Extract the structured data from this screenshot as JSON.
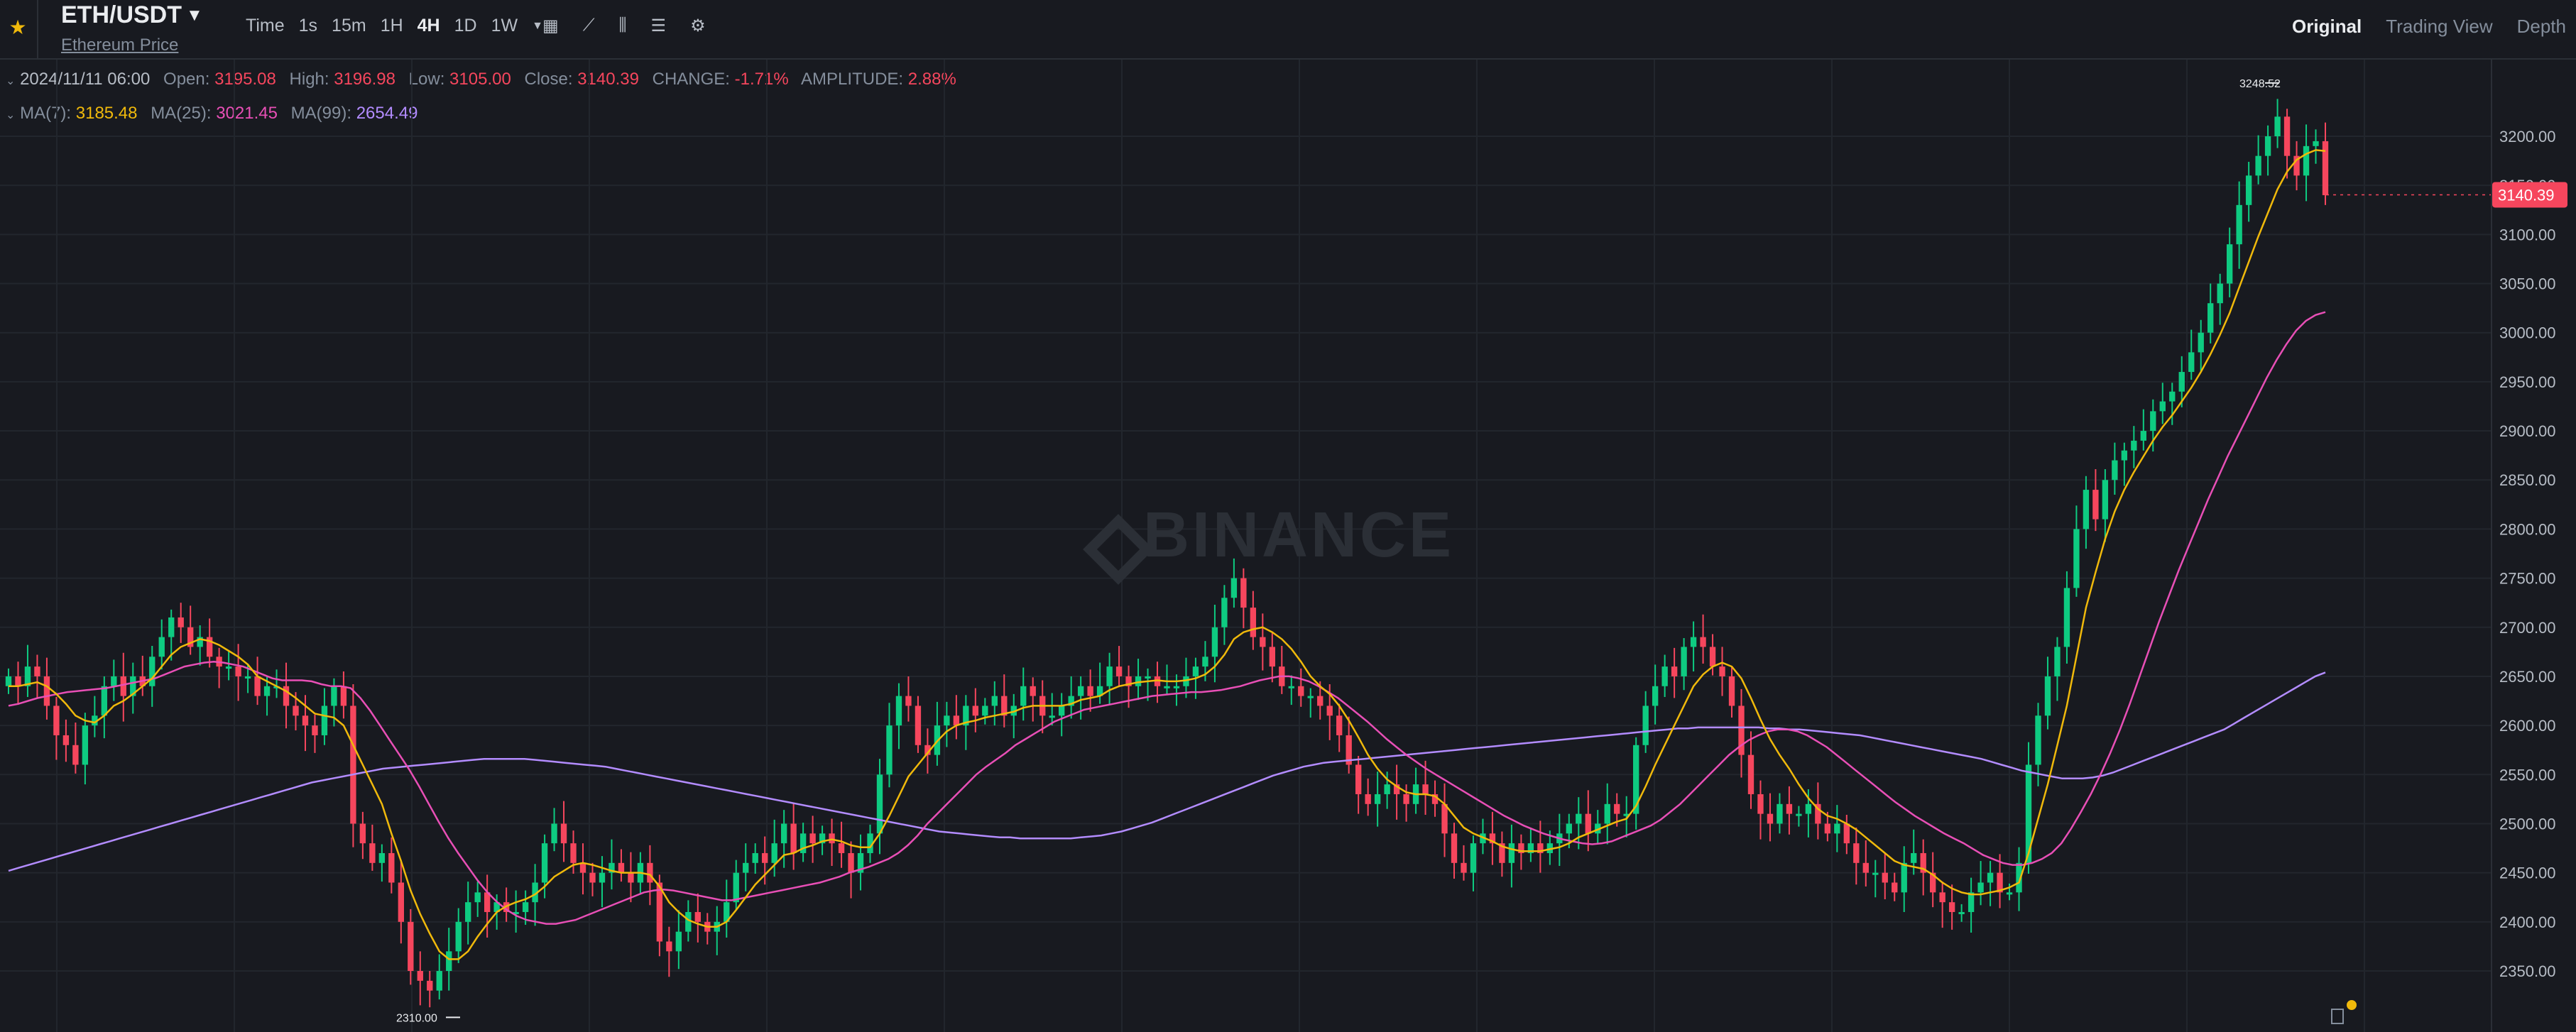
{
  "header": {
    "pair": "ETH/USDT",
    "subtitle": "Ethereum Price",
    "intervals": [
      "Time",
      "1s",
      "15m",
      "1H",
      "4H",
      "1D",
      "1W"
    ],
    "active_interval": "4H",
    "views": [
      "Original",
      "Trading View",
      "Depth"
    ],
    "active_view": "Original"
  },
  "ohlc": {
    "date": "2024/11/11 06:00",
    "open_label": "Open:",
    "open": "3195.08",
    "high_label": "High:",
    "high": "3196.98",
    "low_label": "Low:",
    "low": "3105.00",
    "close_label": "Close:",
    "close": "3140.39",
    "change_label": "CHANGE:",
    "change": "-1.71%",
    "amplitude_label": "AMPLITUDE:",
    "amplitude": "2.88%"
  },
  "ma": {
    "ma7_label": "MA(7):",
    "ma7": "3185.48",
    "ma25_label": "MA(25):",
    "ma25": "3021.45",
    "ma99_label": "MA(99):",
    "ma99": "2654.49"
  },
  "chart_data": {
    "type": "candlestick",
    "y_tick_labels": [
      "3200.00",
      "3150.00",
      "3100.00",
      "3050.00",
      "3000.00",
      "2950.00",
      "2900.00",
      "2850.00",
      "2800.00",
      "2750.00",
      "2700.00",
      "2650.00",
      "2600.00",
      "2550.00",
      "2500.00",
      "2450.00",
      "2400.00",
      "2350.00"
    ],
    "ylim": [
      2300,
      3305
    ],
    "high_marker": "3248.52",
    "low_marker": "2310.00",
    "last_price": "3140.39",
    "watermark": "BINANCE",
    "colors": {
      "up": "#0ecb81",
      "down": "#f6465d",
      "ma7": "#f0b90b",
      "ma25": "#e84fb6",
      "ma99": "#b38cff",
      "grid": "#22262d"
    },
    "closes": [
      2650,
      2640,
      2660,
      2650,
      2620,
      2590,
      2580,
      2560,
      2600,
      2610,
      2640,
      2650,
      2630,
      2650,
      2640,
      2670,
      2690,
      2710,
      2700,
      2680,
      2690,
      2670,
      2660,
      2660,
      2650,
      2650,
      2630,
      2640,
      2640,
      2620,
      2610,
      2600,
      2590,
      2620,
      2640,
      2620,
      2500,
      2480,
      2460,
      2470,
      2440,
      2400,
      2350,
      2340,
      2330,
      2350,
      2370,
      2400,
      2420,
      2430,
      2410,
      2420,
      2410,
      2410,
      2420,
      2440,
      2480,
      2500,
      2480,
      2460,
      2450,
      2440,
      2450,
      2460,
      2450,
      2440,
      2460,
      2440,
      2380,
      2370,
      2390,
      2410,
      2400,
      2390,
      2400,
      2420,
      2450,
      2460,
      2470,
      2460,
      2480,
      2500,
      2470,
      2490,
      2480,
      2490,
      2480,
      2470,
      2450,
      2470,
      2490,
      2550,
      2600,
      2630,
      2620,
      2580,
      2570,
      2600,
      2610,
      2600,
      2620,
      2610,
      2620,
      2630,
      2610,
      2620,
      2640,
      2630,
      2610,
      2610,
      2620,
      2630,
      2640,
      2630,
      2640,
      2660,
      2650,
      2640,
      2650,
      2650,
      2640,
      2640,
      2640,
      2650,
      2660,
      2670,
      2700,
      2730,
      2750,
      2720,
      2690,
      2680,
      2660,
      2640,
      2640,
      2630,
      2630,
      2620,
      2610,
      2590,
      2560,
      2530,
      2520,
      2530,
      2540,
      2530,
      2520,
      2540,
      2530,
      2520,
      2490,
      2460,
      2450,
      2480,
      2490,
      2480,
      2460,
      2480,
      2470,
      2480,
      2470,
      2480,
      2490,
      2500,
      2510,
      2490,
      2500,
      2520,
      2510,
      2510,
      2580,
      2620,
      2640,
      2660,
      2650,
      2680,
      2690,
      2680,
      2660,
      2650,
      2620,
      2570,
      2530,
      2510,
      2500,
      2520,
      2510,
      2510,
      2520,
      2500,
      2490,
      2500,
      2480,
      2460,
      2450,
      2450,
      2440,
      2430,
      2460,
      2470,
      2450,
      2430,
      2420,
      2410,
      2410,
      2430,
      2440,
      2450,
      2430,
      2430,
      2460,
      2560,
      2610,
      2650,
      2680,
      2740,
      2800,
      2840,
      2810,
      2850,
      2870,
      2880,
      2890,
      2900,
      2920,
      2930,
      2940,
      2960,
      2980,
      3000,
      3030,
      3050,
      3090,
      3130,
      3160,
      3180,
      3200,
      3220,
      3180,
      3160,
      3190,
      3195,
      3140
    ],
    "ma7": [
      2640,
      2640,
      2642,
      2644,
      2640,
      2632,
      2622,
      2610,
      2605,
      2603,
      2610,
      2620,
      2625,
      2632,
      2640,
      2648,
      2660,
      2672,
      2680,
      2684,
      2688,
      2686,
      2682,
      2676,
      2670,
      2662,
      2650,
      2645,
      2640,
      2635,
      2628,
      2620,
      2612,
      2610,
      2608,
      2600,
      2580,
      2560,
      2540,
      2520,
      2490,
      2462,
      2432,
      2408,
      2388,
      2370,
      2362,
      2362,
      2370,
      2385,
      2398,
      2410,
      2416,
      2420,
      2423,
      2428,
      2436,
      2446,
      2452,
      2458,
      2460,
      2458,
      2455,
      2452,
      2450,
      2450,
      2450,
      2448,
      2436,
      2420,
      2410,
      2402,
      2398,
      2395,
      2395,
      2400,
      2412,
      2425,
      2438,
      2448,
      2458,
      2468,
      2470,
      2475,
      2478,
      2482,
      2484,
      2482,
      2478,
      2476,
      2476,
      2490,
      2508,
      2528,
      2548,
      2560,
      2572,
      2584,
      2594,
      2600,
      2603,
      2605,
      2608,
      2610,
      2612,
      2614,
      2618,
      2620,
      2620,
      2620,
      2620,
      2622,
      2626,
      2628,
      2630,
      2636,
      2640,
      2642,
      2644,
      2645,
      2646,
      2645,
      2645,
      2646,
      2648,
      2652,
      2660,
      2672,
      2688,
      2695,
      2698,
      2700,
      2695,
      2688,
      2678,
      2665,
      2650,
      2640,
      2632,
      2620,
      2605,
      2588,
      2570,
      2556,
      2545,
      2538,
      2532,
      2530,
      2530,
      2528,
      2520,
      2508,
      2496,
      2490,
      2486,
      2482,
      2477,
      2474,
      2472,
      2472,
      2472,
      2474,
      2476,
      2480,
      2486,
      2490,
      2494,
      2498,
      2502,
      2505,
      2518,
      2538,
      2560,
      2580,
      2600,
      2620,
      2640,
      2652,
      2660,
      2664,
      2660,
      2648,
      2628,
      2606,
      2586,
      2570,
      2556,
      2540,
      2526,
      2515,
      2508,
      2505,
      2500,
      2494,
      2486,
      2478,
      2470,
      2462,
      2458,
      2456,
      2454,
      2448,
      2440,
      2434,
      2430,
      2428,
      2428,
      2430,
      2432,
      2435,
      2440,
      2470,
      2505,
      2540,
      2580,
      2620,
      2670,
      2720,
      2756,
      2790,
      2818,
      2840,
      2858,
      2874,
      2890,
      2904,
      2916,
      2930,
      2944,
      2960,
      2978,
      2998,
      3020,
      3046,
      3072,
      3098,
      3122,
      3146,
      3164,
      3176,
      3182,
      3186,
      3185
    ],
    "ma25": [
      2620,
      2622,
      2625,
      2628,
      2630,
      2632,
      2634,
      2635,
      2636,
      2637,
      2638,
      2640,
      2642,
      2644,
      2646,
      2648,
      2652,
      2656,
      2660,
      2662,
      2664,
      2665,
      2664,
      2662,
      2660,
      2656,
      2652,
      2648,
      2646,
      2646,
      2646,
      2645,
      2642,
      2640,
      2640,
      2638,
      2628,
      2615,
      2600,
      2585,
      2570,
      2555,
      2538,
      2520,
      2502,
      2485,
      2470,
      2456,
      2442,
      2430,
      2420,
      2412,
      2406,
      2402,
      2400,
      2398,
      2398,
      2400,
      2402,
      2406,
      2410,
      2414,
      2418,
      2422,
      2426,
      2430,
      2432,
      2433,
      2432,
      2430,
      2428,
      2426,
      2424,
      2422,
      2422,
      2424,
      2426,
      2428,
      2430,
      2432,
      2434,
      2436,
      2438,
      2440,
      2443,
      2446,
      2450,
      2453,
      2456,
      2460,
      2464,
      2470,
      2478,
      2488,
      2500,
      2510,
      2520,
      2530,
      2540,
      2550,
      2558,
      2565,
      2572,
      2580,
      2586,
      2592,
      2598,
      2604,
      2608,
      2612,
      2616,
      2618,
      2620,
      2622,
      2624,
      2626,
      2628,
      2630,
      2631,
      2632,
      2633,
      2634,
      2634,
      2635,
      2636,
      2638,
      2640,
      2643,
      2646,
      2648,
      2650,
      2650,
      2648,
      2645,
      2640,
      2634,
      2628,
      2620,
      2612,
      2604,
      2595,
      2586,
      2578,
      2570,
      2563,
      2556,
      2550,
      2544,
      2538,
      2532,
      2526,
      2520,
      2514,
      2508,
      2503,
      2498,
      2494,
      2490,
      2487,
      2484,
      2482,
      2480,
      2479,
      2480,
      2482,
      2486,
      2490,
      2494,
      2498,
      2504,
      2512,
      2520,
      2530,
      2540,
      2550,
      2560,
      2570,
      2578,
      2585,
      2590,
      2594,
      2596,
      2596,
      2594,
      2590,
      2584,
      2578,
      2570,
      2562,
      2554,
      2546,
      2538,
      2530,
      2522,
      2515,
      2508,
      2502,
      2496,
      2490,
      2485,
      2480,
      2474,
      2468,
      2464,
      2460,
      2458,
      2458,
      2460,
      2464,
      2470,
      2480,
      2495,
      2512,
      2530,
      2550,
      2572,
      2596,
      2622,
      2650,
      2678,
      2706,
      2732,
      2758,
      2782,
      2806,
      2830,
      2852,
      2874,
      2894,
      2914,
      2934,
      2954,
      2972,
      2988,
      3002,
      3012,
      3018,
      3021
    ],
    "ma99": [
      2452,
      2455,
      2458,
      2461,
      2464,
      2467,
      2470,
      2473,
      2476,
      2479,
      2482,
      2485,
      2488,
      2491,
      2494,
      2497,
      2500,
      2503,
      2506,
      2509,
      2512,
      2515,
      2518,
      2521,
      2524,
      2527,
      2530,
      2533,
      2536,
      2539,
      2542,
      2544,
      2546,
      2548,
      2550,
      2552,
      2554,
      2556,
      2557,
      2558,
      2559,
      2560,
      2561,
      2562,
      2563,
      2564,
      2565,
      2566,
      2566,
      2566,
      2566,
      2566,
      2565,
      2564,
      2563,
      2562,
      2561,
      2560,
      2559,
      2558,
      2556,
      2554,
      2552,
      2550,
      2548,
      2546,
      2544,
      2542,
      2540,
      2538,
      2536,
      2534,
      2532,
      2530,
      2528,
      2526,
      2524,
      2522,
      2520,
      2518,
      2516,
      2514,
      2512,
      2510,
      2508,
      2506,
      2504,
      2502,
      2500,
      2498,
      2496,
      2494,
      2492,
      2491,
      2490,
      2489,
      2488,
      2487,
      2486,
      2486,
      2485,
      2485,
      2485,
      2485,
      2485,
      2485,
      2486,
      2487,
      2488,
      2490,
      2492,
      2495,
      2498,
      2501,
      2505,
      2509,
      2513,
      2517,
      2521,
      2525,
      2529,
      2533,
      2537,
      2541,
      2545,
      2549,
      2552,
      2555,
      2558,
      2560,
      2562,
      2563,
      2564,
      2565,
      2566,
      2567,
      2568,
      2569,
      2570,
      2571,
      2572,
      2573,
      2574,
      2575,
      2576,
      2577,
      2578,
      2579,
      2580,
      2581,
      2582,
      2583,
      2584,
      2585,
      2586,
      2587,
      2588,
      2589,
      2590,
      2591,
      2592,
      2593,
      2594,
      2595,
      2596,
      2597,
      2597,
      2598,
      2598,
      2598,
      2598,
      2598,
      2598,
      2598,
      2597,
      2597,
      2596,
      2596,
      2595,
      2594,
      2593,
      2592,
      2591,
      2590,
      2588,
      2586,
      2584,
      2582,
      2580,
      2578,
      2576,
      2574,
      2572,
      2570,
      2568,
      2566,
      2563,
      2560,
      2557,
      2554,
      2552,
      2550,
      2548,
      2546,
      2546,
      2546,
      2547,
      2549,
      2552,
      2556,
      2560,
      2564,
      2568,
      2572,
      2576,
      2580,
      2584,
      2588,
      2592,
      2596,
      2602,
      2608,
      2614,
      2620,
      2626,
      2632,
      2638,
      2644,
      2650,
      2654
    ]
  }
}
